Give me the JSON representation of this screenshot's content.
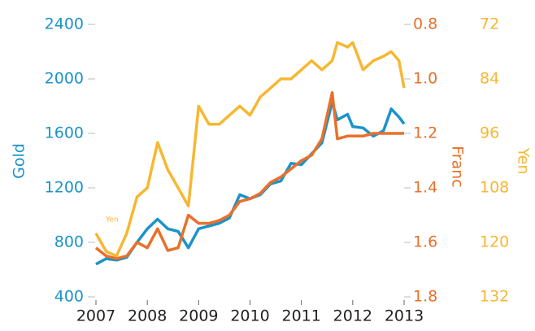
{
  "chart_data": {
    "type": "line",
    "x": [
      2007,
      2007.2,
      2007.4,
      2007.6,
      2007.8,
      2008,
      2008.2,
      2008.4,
      2008.6,
      2008.8,
      2009,
      2009.2,
      2009.4,
      2009.6,
      2009.8,
      2010,
      2010.2,
      2010.4,
      2010.6,
      2010.8,
      2011,
      2011.2,
      2011.4,
      2011.6,
      2011.7,
      2011.9,
      2012,
      2012.2,
      2012.4,
      2012.6,
      2012.75,
      2012.9,
      2013
    ],
    "xlim": [
      2007,
      2013
    ],
    "xticks": [
      2007,
      2008,
      2009,
      2010,
      2011,
      2012,
      2013
    ],
    "ylabel": "Gold",
    "ylim": [
      400,
      2400
    ],
    "yticks": [
      400,
      800,
      1200,
      1600,
      2000,
      2400
    ],
    "y2label": "Franc",
    "y2lim": [
      1.8,
      0.8
    ],
    "y2ticks": [
      1.8,
      1.6,
      1.4,
      1.2,
      {
        "value": 1,
        "label": "1.0"
      },
      0.8
    ],
    "y3label": "Yen",
    "y3lim": [
      132,
      72
    ],
    "y3ticks": [
      132,
      120,
      108,
      96,
      84,
      72
    ],
    "annotation": "Yen",
    "series": [
      {
        "name": "Yen",
        "color": "#f7b731",
        "axis": "y3",
        "values": [
          118,
          122,
          123,
          118,
          110,
          108,
          98,
          104,
          108,
          112,
          90,
          94,
          94,
          92,
          90,
          92,
          88,
          86,
          84,
          84,
          82,
          80,
          82,
          80,
          76,
          77,
          76,
          82,
          80,
          79,
          78,
          80,
          86
        ]
      },
      {
        "name": "Gold",
        "color": "#1b93c9",
        "axis": "y",
        "values": [
          640,
          680,
          670,
          690,
          800,
          900,
          970,
          900,
          880,
          760,
          900,
          920,
          940,
          980,
          1150,
          1120,
          1150,
          1230,
          1250,
          1380,
          1370,
          1450,
          1530,
          1830,
          1700,
          1740,
          1650,
          1640,
          1580,
          1620,
          1780,
          1720,
          1670
        ]
      },
      {
        "name": "Franc",
        "color": "#e9702b",
        "axis": "y2",
        "values": [
          1.62,
          1.65,
          1.66,
          1.65,
          1.6,
          1.62,
          1.55,
          1.63,
          1.62,
          1.5,
          1.53,
          1.53,
          1.52,
          1.5,
          1.45,
          1.44,
          1.42,
          1.38,
          1.36,
          1.33,
          1.3,
          1.28,
          1.22,
          1.05,
          1.22,
          1.21,
          1.21,
          1.21,
          1.2,
          1.2,
          1.2,
          1.2,
          1.2
        ]
      }
    ]
  }
}
